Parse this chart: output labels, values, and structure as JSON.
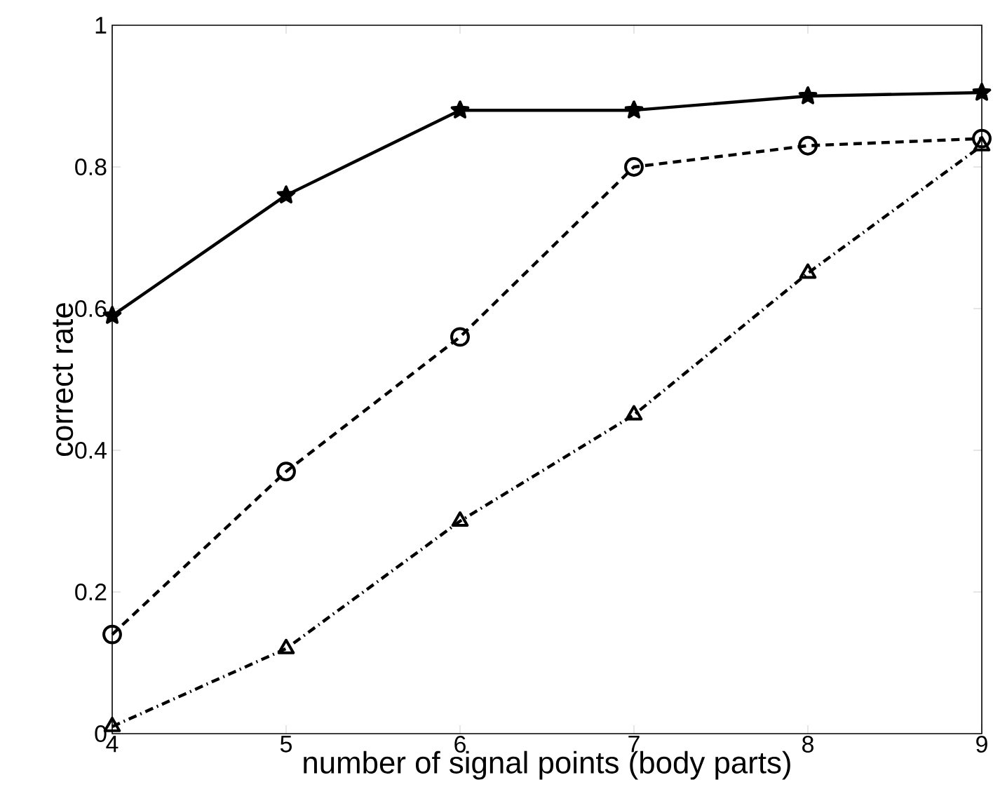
{
  "chart_data": {
    "type": "line",
    "xlabel": "number of signal points (body parts)",
    "ylabel": "correct rate",
    "x": [
      4,
      5,
      6,
      7,
      8,
      9
    ],
    "series": [
      {
        "color": "#000000",
        "marker": "star",
        "line_style": "solid",
        "values": [
          0.59,
          0.76,
          0.88,
          0.88,
          0.9,
          0.905
        ]
      },
      {
        "color": "#000000",
        "marker": "circle",
        "line_style": "dashed",
        "values": [
          0.14,
          0.37,
          0.56,
          0.8,
          0.83,
          0.84
        ]
      },
      {
        "color": "#000000",
        "marker": "triangle",
        "line_style": "dashdot",
        "values": [
          0.01,
          0.12,
          0.3,
          0.45,
          0.65,
          0.83
        ]
      }
    ],
    "xlim": [
      4,
      9
    ],
    "ylim": [
      0,
      1
    ],
    "xticks": [
      4,
      5,
      6,
      7,
      8,
      9
    ],
    "yticks": [
      0,
      0.2,
      0.4,
      0.6,
      0.8,
      1
    ]
  }
}
